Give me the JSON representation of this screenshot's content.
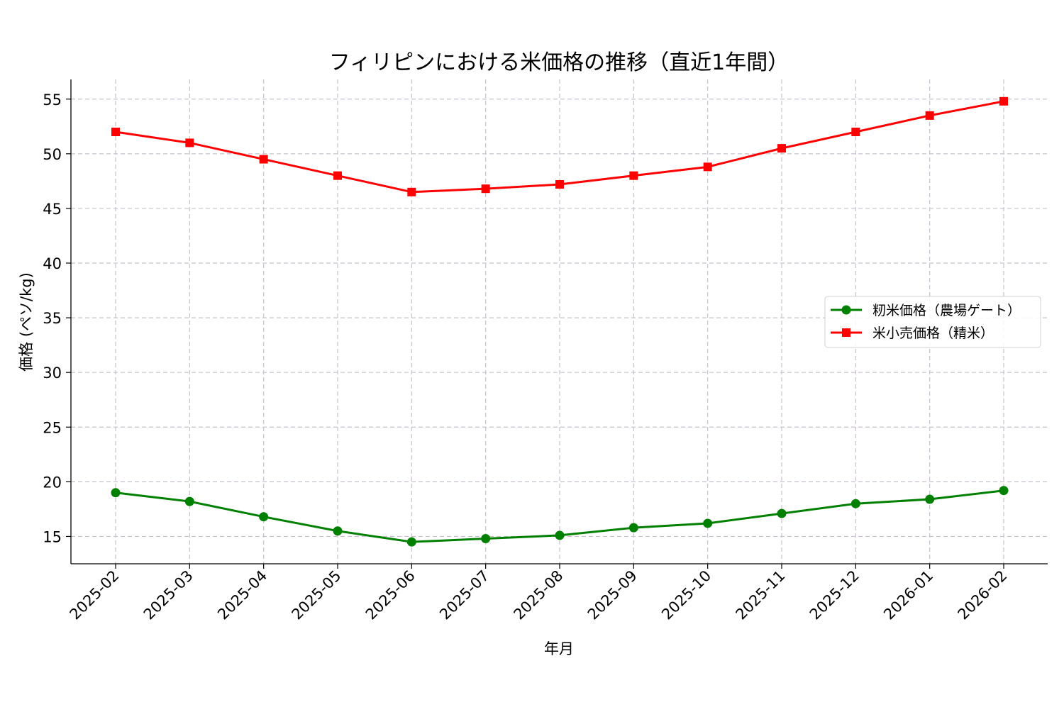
{
  "chart_data": {
    "type": "line",
    "title": "フィリピンにおける米価格の推移（直近1年間）",
    "xlabel": "年月",
    "ylabel": "価格 (ペソ/kg)",
    "categories": [
      "2025-02",
      "2025-03",
      "2025-04",
      "2025-05",
      "2025-06",
      "2025-07",
      "2025-08",
      "2025-09",
      "2025-10",
      "2025-11",
      "2025-12",
      "2026-01",
      "2026-02"
    ],
    "ylim": [
      12.5,
      56.8
    ],
    "yticks": [
      15,
      20,
      25,
      30,
      35,
      40,
      45,
      50,
      55
    ],
    "grid": true,
    "legend_position": "center-right",
    "series": [
      {
        "name": "籾米価格（農場ゲート）",
        "color": "#008000",
        "marker": "circle",
        "values": [
          19.0,
          18.2,
          16.8,
          15.5,
          14.5,
          14.8,
          15.1,
          15.8,
          16.2,
          17.1,
          18.0,
          18.4,
          19.2
        ]
      },
      {
        "name": "米小売価格（精米）",
        "color": "#ff0000",
        "marker": "square",
        "values": [
          52.0,
          51.0,
          49.5,
          48.0,
          46.5,
          46.8,
          47.2,
          48.0,
          48.8,
          50.5,
          52.0,
          53.5,
          54.8
        ]
      }
    ]
  }
}
